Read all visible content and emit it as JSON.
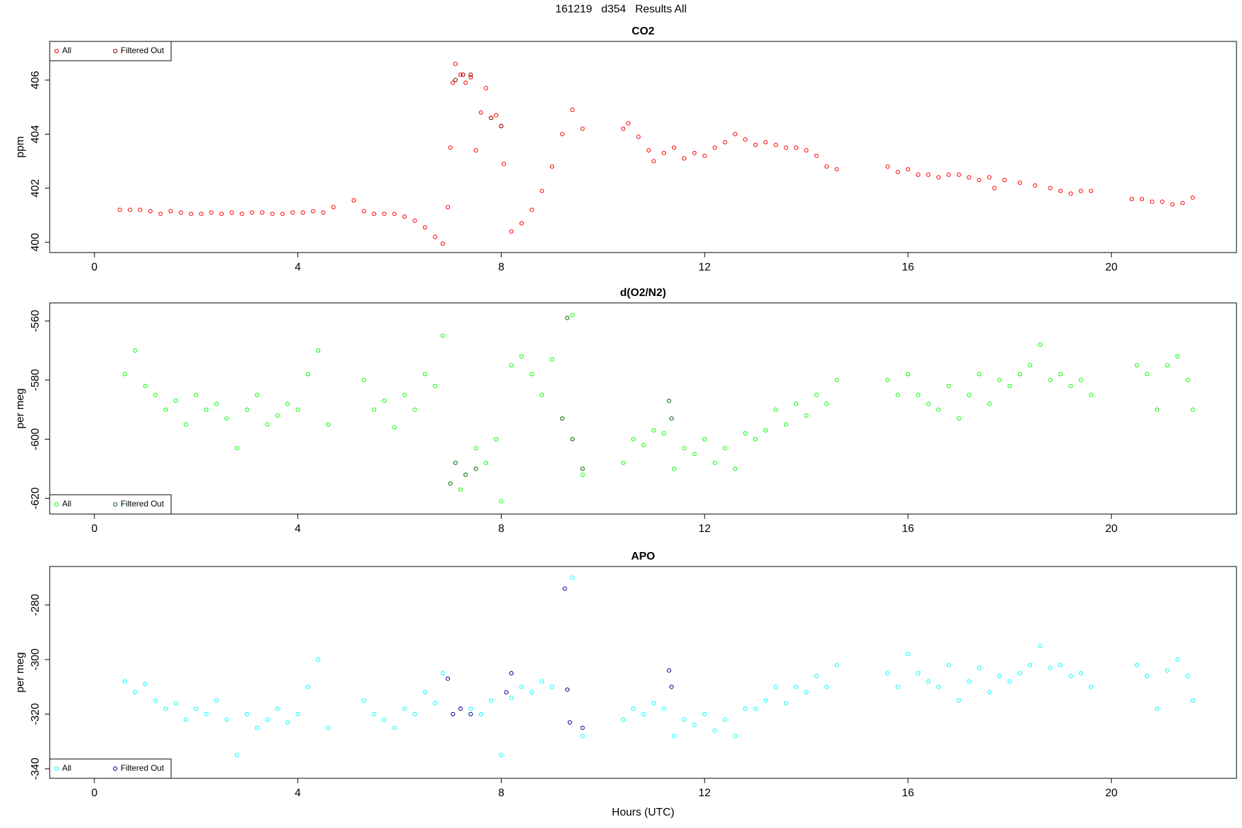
{
  "title": "161219   d354   Results All",
  "chart_data": [
    {
      "type": "scatter",
      "title": "CO2",
      "ylabel": "ppm",
      "legend": "top-left",
      "xlim": [
        -0.88,
        22.46
      ],
      "xticks": [
        0,
        4,
        8,
        12,
        16,
        20
      ],
      "ylim": [
        399.62,
        407.43
      ],
      "yticks": [
        400,
        402,
        404,
        406
      ],
      "series": [
        {
          "name": "All",
          "color": "#ff0000",
          "x": [
            0.5,
            0.7,
            0.9,
            1.1,
            1.3,
            1.5,
            1.7,
            1.9,
            2.1,
            2.3,
            2.5,
            2.7,
            2.9,
            3.1,
            3.3,
            3.5,
            3.7,
            3.9,
            4.1,
            4.3,
            4.5,
            4.7,
            5.1,
            5.3,
            5.5,
            5.7,
            5.9,
            6.1,
            6.3,
            6.5,
            6.7,
            6.85,
            6.95,
            7.0,
            7.05,
            7.1,
            7.2,
            7.3,
            7.4,
            7.5,
            7.6,
            7.7,
            7.8,
            7.9,
            8.0,
            8.05,
            8.2,
            8.4,
            8.6,
            8.8,
            9.0,
            9.2,
            9.4,
            9.6,
            10.4,
            10.5,
            10.7,
            10.9,
            11.0,
            11.2,
            11.4,
            11.6,
            11.8,
            12.0,
            12.2,
            12.4,
            12.6,
            12.8,
            13.0,
            13.2,
            13.4,
            13.6,
            13.8,
            14.0,
            14.2,
            14.4,
            14.6,
            15.6,
            15.8,
            16.0,
            16.2,
            16.4,
            16.6,
            16.8,
            17.0,
            17.2,
            17.4,
            17.6,
            17.7,
            17.9,
            18.2,
            18.5,
            18.8,
            19.0,
            19.2,
            19.4,
            19.6,
            20.4,
            20.6,
            20.8,
            21.0,
            21.2,
            21.4,
            21.6
          ],
          "values": [
            401.2,
            401.2,
            401.2,
            401.15,
            401.05,
            401.15,
            401.1,
            401.05,
            401.05,
            401.1,
            401.05,
            401.1,
            401.05,
            401.1,
            401.1,
            401.05,
            401.05,
            401.1,
            401.1,
            401.15,
            401.1,
            401.3,
            401.55,
            401.15,
            401.05,
            401.05,
            401.05,
            400.95,
            400.8,
            400.55,
            400.2,
            399.95,
            401.3,
            403.5,
            405.9,
            406.6,
            406.2,
            405.9,
            406.1,
            403.4,
            404.8,
            405.7,
            404.6,
            404.7,
            404.3,
            402.9,
            400.4,
            400.7,
            401.2,
            401.9,
            402.8,
            404.0,
            404.9,
            404.2,
            404.2,
            404.4,
            403.9,
            403.4,
            403.0,
            403.3,
            403.5,
            403.1,
            403.3,
            403.2,
            403.5,
            403.7,
            404.0,
            403.8,
            403.6,
            403.7,
            403.6,
            403.5,
            403.5,
            403.4,
            403.2,
            402.8,
            402.7,
            402.8,
            402.6,
            402.7,
            402.5,
            402.5,
            402.4,
            402.5,
            402.5,
            402.4,
            402.3,
            402.4,
            402.0,
            402.3,
            402.2,
            402.1,
            402.0,
            401.9,
            401.8,
            401.9,
            401.9,
            401.6,
            401.6,
            401.5,
            401.5,
            401.4,
            401.45,
            401.65
          ]
        },
        {
          "name": "Filtered Out",
          "color": "#8b0000",
          "x": [
            7.1,
            7.25,
            7.4,
            7.8,
            8.0
          ],
          "values": [
            406.0,
            406.2,
            406.2,
            404.6,
            404.3
          ]
        }
      ]
    },
    {
      "type": "scatter",
      "title": "d(O2/N2)",
      "ylabel": "per meg",
      "legend": "bottom-left",
      "xlim": [
        -0.88,
        22.46
      ],
      "xticks": [
        0,
        4,
        8,
        12,
        16,
        20
      ],
      "ylim": [
        -625.3,
        -553.9
      ],
      "yticks": [
        -620,
        -600,
        -580,
        -560
      ],
      "series": [
        {
          "name": "All",
          "color": "#00ff00",
          "x": [
            0.6,
            0.8,
            1.0,
            1.2,
            1.4,
            1.6,
            1.8,
            2.0,
            2.2,
            2.4,
            2.6,
            2.8,
            3.0,
            3.2,
            3.4,
            3.6,
            3.8,
            4.0,
            4.2,
            4.4,
            4.6,
            5.3,
            5.5,
            5.7,
            5.9,
            6.1,
            6.3,
            6.5,
            6.7,
            6.85,
            7.2,
            7.5,
            7.7,
            7.9,
            8.0,
            8.2,
            8.4,
            8.6,
            8.8,
            9.0,
            9.4,
            9.6,
            10.4,
            10.6,
            10.8,
            11.0,
            11.2,
            11.4,
            11.6,
            11.8,
            12.0,
            12.2,
            12.4,
            12.6,
            12.8,
            13.0,
            13.2,
            13.4,
            13.6,
            13.8,
            14.0,
            14.2,
            14.4,
            14.6,
            15.6,
            15.8,
            16.0,
            16.2,
            16.4,
            16.6,
            16.8,
            17.0,
            17.2,
            17.4,
            17.6,
            17.8,
            18.0,
            18.2,
            18.4,
            18.6,
            18.8,
            19.0,
            19.2,
            19.4,
            19.6,
            20.5,
            20.7,
            20.9,
            21.1,
            21.3,
            21.5,
            21.6
          ],
          "values": [
            -578,
            -570,
            -582,
            -585,
            -590,
            -587,
            -595,
            -585,
            -590,
            -588,
            -593,
            -603,
            -590,
            -585,
            -595,
            -592,
            -588,
            -590,
            -578,
            -570,
            -595,
            -580,
            -590,
            -587,
            -596,
            -585,
            -590,
            -578,
            -582,
            -565,
            -617,
            -603,
            -608,
            -600,
            -621,
            -575,
            -572,
            -578,
            -585,
            -573,
            -558,
            -612,
            -608,
            -600,
            -602,
            -597,
            -598,
            -610,
            -603,
            -605,
            -600,
            -608,
            -603,
            -610,
            -598,
            -600,
            -597,
            -590,
            -595,
            -588,
            -592,
            -585,
            -588,
            -580,
            -580,
            -585,
            -578,
            -585,
            -588,
            -590,
            -582,
            -593,
            -585,
            -578,
            -588,
            -580,
            -582,
            -578,
            -575,
            -568,
            -580,
            -578,
            -582,
            -580,
            -585,
            -575,
            -578,
            -590,
            -575,
            -572,
            -580,
            -590
          ]
        },
        {
          "name": "Filtered Out",
          "color": "#006400",
          "x": [
            7.0,
            7.1,
            7.3,
            7.5,
            9.2,
            9.3,
            9.4,
            9.6,
            11.3,
            11.35
          ],
          "values": [
            -615,
            -608,
            -612,
            -610,
            -593,
            -559,
            -600,
            -610,
            -587,
            -593
          ]
        }
      ]
    },
    {
      "type": "scatter",
      "title": "APO",
      "ylabel": "per meg",
      "xlabel": "Hours (UTC)",
      "legend": "bottom-left",
      "xlim": [
        -0.88,
        22.46
      ],
      "xticks": [
        0,
        4,
        8,
        12,
        16,
        20
      ],
      "ylim": [
        -343.5,
        -265.9
      ],
      "yticks": [
        -340,
        -320,
        -300,
        -280
      ],
      "series": [
        {
          "name": "All",
          "color": "#00ffff",
          "x": [
            0.6,
            0.8,
            1.0,
            1.2,
            1.4,
            1.6,
            1.8,
            2.0,
            2.2,
            2.4,
            2.6,
            2.8,
            3.0,
            3.2,
            3.4,
            3.6,
            3.8,
            4.0,
            4.2,
            4.4,
            4.6,
            5.3,
            5.5,
            5.7,
            5.9,
            6.1,
            6.3,
            6.5,
            6.7,
            6.85,
            7.4,
            7.6,
            7.8,
            8.0,
            8.2,
            8.4,
            8.6,
            8.8,
            9.0,
            9.4,
            9.6,
            10.4,
            10.6,
            10.8,
            11.0,
            11.2,
            11.4,
            11.6,
            11.8,
            12.0,
            12.2,
            12.4,
            12.6,
            12.8,
            13.0,
            13.2,
            13.4,
            13.6,
            13.8,
            14.0,
            14.2,
            14.4,
            14.6,
            15.6,
            15.8,
            16.0,
            16.2,
            16.4,
            16.6,
            16.8,
            17.0,
            17.2,
            17.4,
            17.6,
            17.8,
            18.0,
            18.2,
            18.4,
            18.6,
            18.8,
            19.0,
            19.2,
            19.4,
            19.6,
            20.5,
            20.7,
            20.9,
            21.1,
            21.3,
            21.5,
            21.6
          ],
          "values": [
            -308,
            -312,
            -309,
            -315,
            -318,
            -316,
            -322,
            -318,
            -320,
            -315,
            -322,
            -335,
            -320,
            -325,
            -322,
            -318,
            -323,
            -320,
            -310,
            -300,
            -325,
            -315,
            -320,
            -322,
            -325,
            -318,
            -320,
            -312,
            -316,
            -305,
            -318,
            -320,
            -315,
            -335,
            -314,
            -310,
            -312,
            -308,
            -310,
            -270,
            -328,
            -322,
            -318,
            -320,
            -316,
            -318,
            -328,
            -322,
            -324,
            -320,
            -326,
            -322,
            -328,
            -318,
            -318,
            -315,
            -310,
            -316,
            -310,
            -312,
            -306,
            -310,
            -302,
            -305,
            -310,
            -298,
            -305,
            -308,
            -310,
            -302,
            -315,
            -308,
            -303,
            -312,
            -306,
            -308,
            -305,
            -302,
            -295,
            -303,
            -302,
            -306,
            -305,
            -310,
            -302,
            -306,
            -318,
            -304,
            -300,
            -306,
            -315
          ]
        },
        {
          "name": "Filtered Out",
          "color": "#00008b",
          "x": [
            6.95,
            7.05,
            7.2,
            7.4,
            8.1,
            8.2,
            9.25,
            9.3,
            9.35,
            9.6,
            11.3,
            11.35
          ],
          "values": [
            -307,
            -320,
            -318,
            -320,
            -312,
            -305,
            -274,
            -311,
            -323,
            -325,
            -304,
            -310
          ]
        }
      ]
    }
  ]
}
